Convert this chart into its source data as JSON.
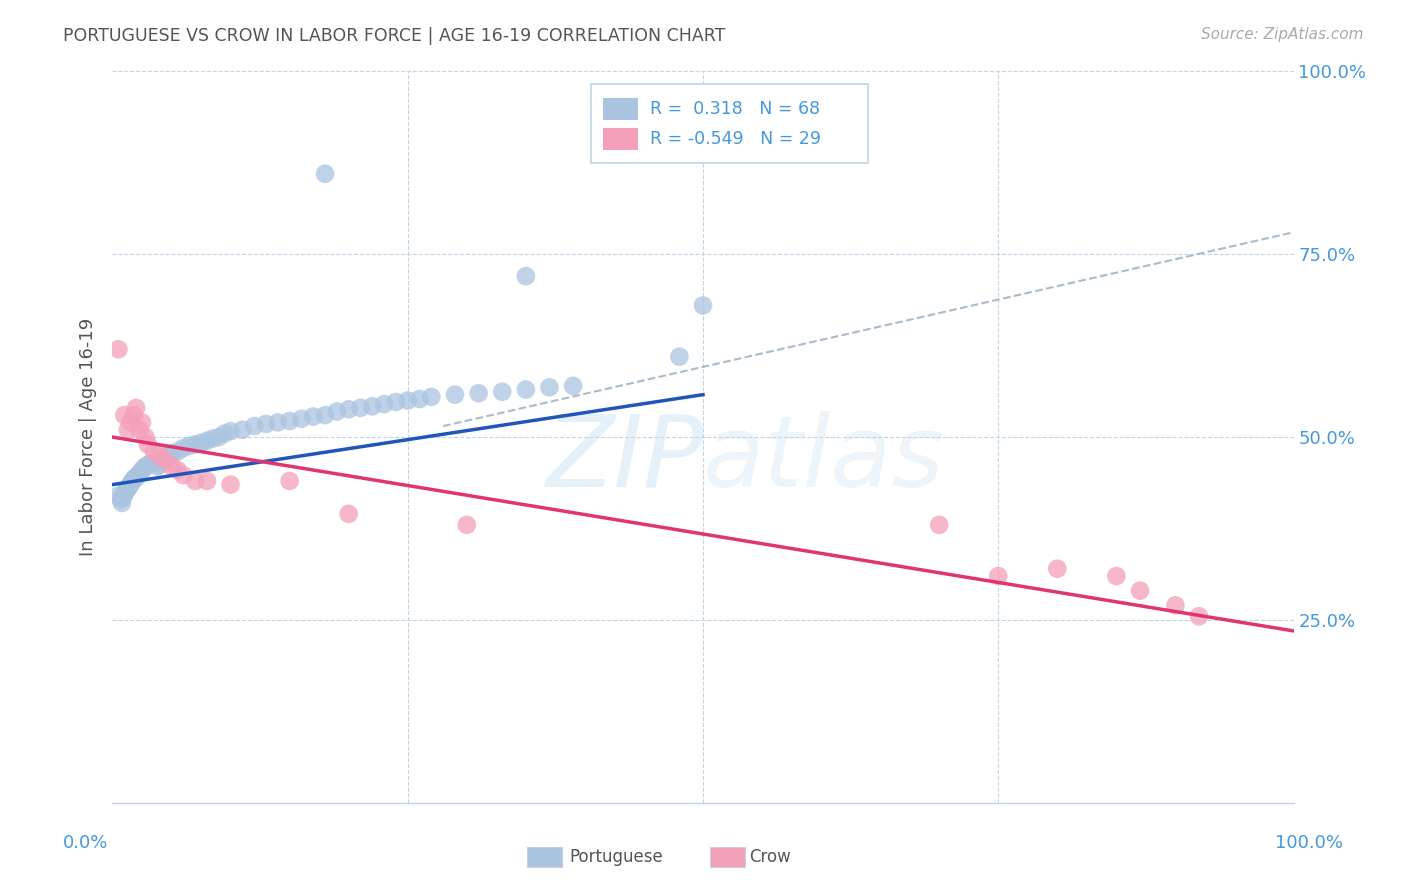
{
  "title": "PORTUGUESE VS CROW IN LABOR FORCE | AGE 16-19 CORRELATION CHART",
  "source": "Source: ZipAtlas.com",
  "ylabel": "In Labor Force | Age 16-19",
  "xlim": [
    0.0,
    1.0
  ],
  "ylim": [
    0.0,
    1.0
  ],
  "portuguese_color": "#aac4e0",
  "crow_color": "#f4a0b8",
  "portuguese_line_color": "#2255bb",
  "crow_line_color": "#e03570",
  "dashed_line_color": "#aabbcc",
  "background_color": "#ffffff",
  "grid_color": "#c0d4e8",
  "watermark_color": "#d5e8f5",
  "right_tick_color": "#4499dd",
  "title_color": "#555555",
  "source_color": "#aaaaaa",
  "ylabel_color": "#555555",
  "legend_border_color": "#c0d4e8",
  "port_x": [
    0.005,
    0.007,
    0.008,
    0.009,
    0.01,
    0.011,
    0.012,
    0.013,
    0.014,
    0.015,
    0.016,
    0.017,
    0.018,
    0.019,
    0.02,
    0.021,
    0.022,
    0.023,
    0.024,
    0.025,
    0.027,
    0.028,
    0.03,
    0.032,
    0.035,
    0.038,
    0.04,
    0.042,
    0.045,
    0.048,
    0.05,
    0.055,
    0.06,
    0.065,
    0.07,
    0.075,
    0.08,
    0.085,
    0.09,
    0.095,
    0.1,
    0.11,
    0.12,
    0.13,
    0.14,
    0.15,
    0.16,
    0.17,
    0.18,
    0.19,
    0.2,
    0.21,
    0.22,
    0.23,
    0.24,
    0.25,
    0.26,
    0.27,
    0.29,
    0.31,
    0.33,
    0.35,
    0.37,
    0.39,
    0.18,
    0.35,
    0.48,
    0.5
  ],
  "port_y": [
    0.42,
    0.415,
    0.41,
    0.418,
    0.422,
    0.425,
    0.428,
    0.43,
    0.432,
    0.435,
    0.438,
    0.44,
    0.442,
    0.444,
    0.445,
    0.447,
    0.448,
    0.45,
    0.452,
    0.455,
    0.458,
    0.46,
    0.462,
    0.464,
    0.465,
    0.46,
    0.462,
    0.468,
    0.472,
    0.475,
    0.478,
    0.48,
    0.485,
    0.488,
    0.49,
    0.492,
    0.495,
    0.498,
    0.5,
    0.505,
    0.508,
    0.51,
    0.515,
    0.518,
    0.52,
    0.522,
    0.525,
    0.528,
    0.53,
    0.535,
    0.538,
    0.54,
    0.542,
    0.545,
    0.548,
    0.55,
    0.552,
    0.555,
    0.558,
    0.56,
    0.562,
    0.565,
    0.568,
    0.57,
    0.86,
    0.72,
    0.61,
    0.68
  ],
  "crow_x": [
    0.005,
    0.01,
    0.013,
    0.015,
    0.018,
    0.02,
    0.023,
    0.025,
    0.028,
    0.03,
    0.035,
    0.04,
    0.045,
    0.05,
    0.055,
    0.06,
    0.07,
    0.08,
    0.1,
    0.15,
    0.2,
    0.3,
    0.7,
    0.75,
    0.8,
    0.85,
    0.87,
    0.9,
    0.92
  ],
  "crow_y": [
    0.62,
    0.53,
    0.51,
    0.52,
    0.53,
    0.54,
    0.51,
    0.52,
    0.5,
    0.49,
    0.48,
    0.475,
    0.468,
    0.46,
    0.455,
    0.448,
    0.44,
    0.44,
    0.435,
    0.44,
    0.395,
    0.38,
    0.38,
    0.31,
    0.32,
    0.31,
    0.29,
    0.27,
    0.255
  ],
  "blue_line": [
    [
      0.0,
      0.435
    ],
    [
      0.5,
      0.558
    ]
  ],
  "pink_line": [
    [
      0.0,
      0.5
    ],
    [
      1.0,
      0.235
    ]
  ],
  "dashed_line": [
    [
      0.28,
      0.515
    ],
    [
      1.0,
      0.78
    ]
  ]
}
